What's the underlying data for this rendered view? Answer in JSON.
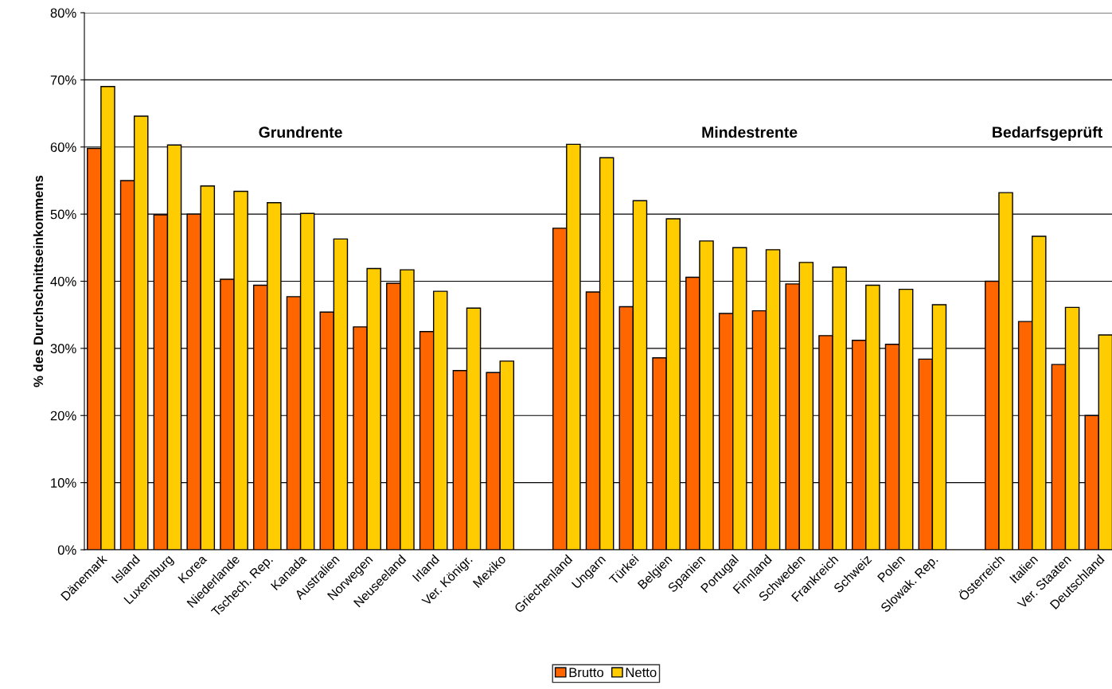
{
  "chart_data": {
    "type": "bar",
    "ylabel": "% des Durchschnittseinkommens",
    "categories": [
      "Dänemark",
      "Island",
      "Luxemburg",
      "Korea",
      "Niederlande",
      "Tschech. Rep.",
      "Kanada",
      "Australien",
      "Norwegen",
      "Neuseeland",
      "Irland",
      "Ver. Königr.",
      "Mexiko",
      null,
      "Griechenland",
      "Ungarn",
      "Türkei",
      "Belgien",
      "Spanien",
      "Portugal",
      "Finnland",
      "Schweden",
      "Frankreich",
      "Schweiz",
      "Polen",
      "Slowak. Rep.",
      null,
      "Österreich",
      "Italien",
      "Ver. Staaten",
      "Deutschland"
    ],
    "series": [
      {
        "name": "Brutto",
        "color": "#ff6600",
        "values": [
          59.8,
          55.0,
          49.9,
          50.0,
          40.3,
          39.4,
          37.7,
          35.4,
          33.2,
          39.7,
          32.5,
          26.7,
          26.4,
          null,
          47.9,
          38.4,
          36.2,
          28.6,
          40.6,
          35.2,
          35.6,
          39.6,
          31.9,
          31.2,
          30.6,
          28.4,
          null,
          40.0,
          34.0,
          27.6,
          20.0
        ]
      },
      {
        "name": "Netto",
        "color": "#ffcc00",
        "values": [
          69.0,
          64.6,
          60.3,
          54.2,
          53.4,
          51.7,
          50.1,
          46.3,
          41.9,
          41.7,
          38.5,
          36.0,
          28.1,
          null,
          60.4,
          58.4,
          52.0,
          49.3,
          46.0,
          45.0,
          44.7,
          42.8,
          42.1,
          39.4,
          38.8,
          36.5,
          null,
          53.2,
          46.7,
          36.1,
          32.0
        ]
      }
    ],
    "ylim": [
      0,
      80
    ],
    "yticks": [
      {
        "value": 0,
        "label": "0%"
      },
      {
        "value": 10,
        "label": "10%"
      },
      {
        "value": 20,
        "label": "20%"
      },
      {
        "value": 30,
        "label": "30%"
      },
      {
        "value": 40,
        "label": "40%"
      },
      {
        "value": 50,
        "label": "50%"
      },
      {
        "value": 60,
        "label": "60%"
      },
      {
        "value": 70,
        "label": "70%"
      },
      {
        "value": 80,
        "label": "80%"
      }
    ],
    "annotations": [
      "Grundrente",
      "Mindestrente",
      "Bedarfsgeprüft"
    ],
    "grid": "y",
    "legend": "bottom"
  }
}
